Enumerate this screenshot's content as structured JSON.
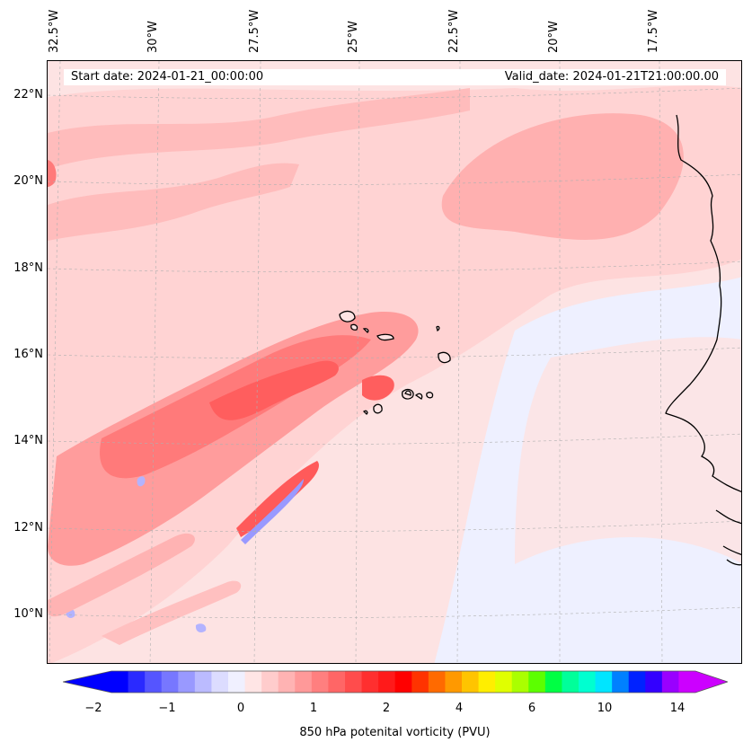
{
  "header": {
    "start_date": "Start date: 2024-01-21_00:00:00",
    "valid_date": "Valid_date: 2024-01-21T21:00:00.00"
  },
  "longitude_labels": [
    "32.5°W",
    "30°W",
    "27.5°W",
    "25°W",
    "22.5°W",
    "20°W",
    "17.5°W"
  ],
  "latitude_labels": [
    "22°N",
    "20°N",
    "18°N",
    "16°N",
    "14°N",
    "12°N",
    "10°N"
  ],
  "colorbar": {
    "label": "850 hPa potenital vorticity (PVU)",
    "tick_labels": [
      "−2",
      "−1",
      "0",
      "1",
      "2",
      "4",
      "6",
      "10",
      "14"
    ],
    "colors": [
      "#0000ff",
      "#2a2aff",
      "#5555ff",
      "#7777ff",
      "#9999ff",
      "#bbbbff",
      "#dcdcff",
      "#f0f0ff",
      "#ffe5e5",
      "#ffcccc",
      "#ffb3b3",
      "#ff9999",
      "#ff7f7f",
      "#ff6666",
      "#ff4c4c",
      "#ff2f2f",
      "#ff1a1a",
      "#ff0000",
      "#ff3300",
      "#ff6a00",
      "#ff9900",
      "#ffc400",
      "#ffee00",
      "#e0ff00",
      "#aaff00",
      "#5cff00",
      "#00ff44",
      "#00ff9a",
      "#00ffd0",
      "#00e5ff",
      "#0080ff",
      "#0022ff",
      "#3300ff",
      "#9900ff",
      "#cc00ff"
    ],
    "extend_min_color": "#0000ff",
    "extend_max_color": "#cc00ff"
  },
  "map_colors": {
    "background": "#fde3e3",
    "light_pink": "#ffd0d0",
    "pink": "#ffb3b3",
    "red": "#ff8080",
    "strong_red": "#ff5a5a",
    "blue": "#b3b3ff",
    "pale_blue": "#eef0ff",
    "coast": "#000000"
  }
}
